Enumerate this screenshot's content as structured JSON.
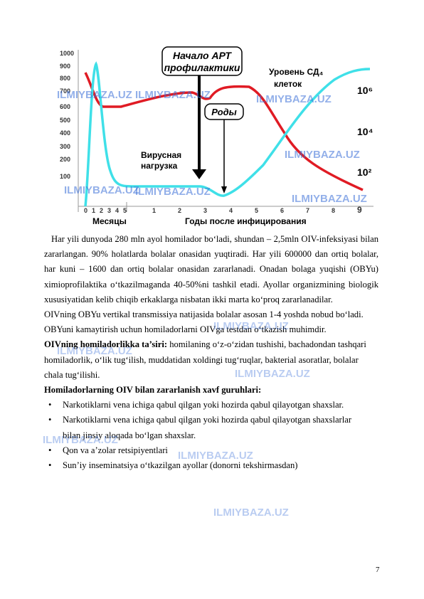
{
  "figure": {
    "y_labels": [
      1000,
      900,
      800,
      700,
      600,
      500,
      400,
      300,
      200,
      100
    ],
    "y2_labels": [
      "10⁶",
      "10⁴",
      "10²"
    ],
    "x_months": [
      0,
      1,
      2,
      3,
      4,
      5
    ],
    "x_years": [
      1,
      2,
      3,
      4,
      5,
      6,
      7,
      8,
      9
    ],
    "x_months_title": "Месяцы",
    "x_years_title": "Годы после инфицирования",
    "art_label": [
      "Начало АРТ",
      "профилактики"
    ],
    "cd4_label": [
      "Уровень СД₄",
      "клеток"
    ],
    "birth_label": "Роды",
    "viral_label": [
      "Вирусная",
      "нагрузка"
    ]
  },
  "watermark": "ILMIYBAZA.UZ",
  "paragraphs": [
    "Har yili dunyoda 280 mln ayol homilador bo‘ladi, shundan  – 2,5mln OIV-infeksiyasi bilan zararlangan. 90% holatlarda bolalar onasidan yuqtiradi. Har yili 600000 dan ortiq bolalar, har kuni – 1600 dan ortiq bolalar onasidan zararlanadi. Onadan bolaga yuqishi (OBYu) ximioprofilaktika o‘tkazilmaganda 40-50%ni tashkil etadi. Ayollar organizmining biologik xususiyatidan kelib chiqib erkaklarga nisbatan ikki marta ko‘proq zararlanadilar.",
    "OIVning OBYu vertikal transmissiya natijasida bolalar asosan 1-4 yoshda nobud bo‘ladi.",
    "OBYuni kamaytirish uchun homiladorlarni OIVga testdan o‘tkazish muhimdir."
  ],
  "effects": {
    "bold": "OIVning homiladorlikka ta’siri:",
    "text": " homilaning o‘z-o‘zidan tushishi, bachadondan tashqari homiladorlik, o‘lik tug‘ilish, muddatidan xoldingi tug‘ruqlar, bakterial asoratlar, bolalar chala tug‘ilishi."
  },
  "risk_title": "Homiladorlarning OIV bilan zararlanish xavf guruhlari:",
  "risk_groups": [
    "Narkotiklarni vena ichiga qabul qilgan yoki hozirda qabul qilayotgan shaxslar.",
    "Narkotiklarni vena ichiga qabul qilgan yoki hozirda qabul qilayotgan shaxslarlar bilan jinsiy aloqada bo‘lgan shaxslar.",
    "Qon va a’zolar retsipiyentlari",
    "Sun’iy inseminatsiya o‘tkazilgan ayollar (donorni tekshirmasdan)"
  ],
  "page_number": "7"
}
